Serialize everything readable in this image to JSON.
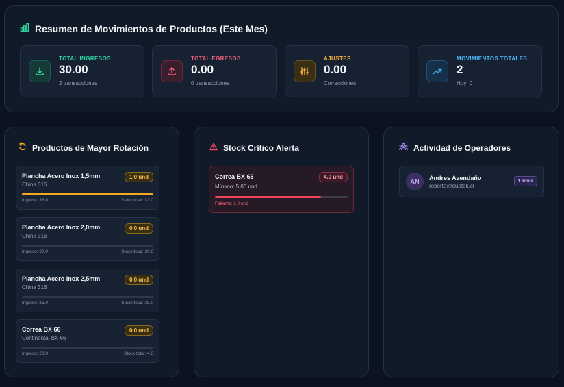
{
  "summary": {
    "title": "Resumen de Movimientos de Productos (Este Mes)",
    "stats": [
      {
        "label": "TOTAL INGRESOS",
        "value": "30.00",
        "sub": "2 transacciones",
        "icon": "download-icon",
        "color": "#2fd2a0"
      },
      {
        "label": "TOTAL EGRESOS",
        "value": "0.00",
        "sub": "0 transacciones",
        "icon": "upload-icon",
        "color": "#f0607a"
      },
      {
        "label": "AJUSTES",
        "value": "0.00",
        "sub": "Correcciones",
        "icon": "sliders-icon",
        "color": "#f3b23a"
      },
      {
        "label": "MOVIMIENTOS TOTALES",
        "value": "2",
        "sub": "Hoy: 0",
        "icon": "trending-up-icon",
        "color": "#4ab6f5"
      }
    ]
  },
  "rotation": {
    "title": "Productos de Mayor Rotación",
    "items": [
      {
        "name": "Plancha Acero Inox 1,5mm",
        "sub": "China 316",
        "badge": "1.0 und",
        "ingreso": "Ingreso: 35.0",
        "stock": "Stock total: 33.0",
        "progress": 1.0
      },
      {
        "name": "Plancha Acero Inox 2,0mm",
        "sub": "China 316",
        "badge": "0.0 und",
        "ingreso": "Ingreso: 30.0",
        "stock": "Stock total: 30.0",
        "progress": 0.0
      },
      {
        "name": "Plancha Acero Inox 2,5mm",
        "sub": "China 316",
        "badge": "0.0 und",
        "ingreso": "Ingreso: 35.0",
        "stock": "Stock total: 35.0",
        "progress": 0.0
      },
      {
        "name": "Correa BX 66",
        "sub": "Continental BX 66",
        "badge": "0.0 und",
        "ingreso": "Ingreso: 20.0",
        "stock": "Stock total: 4.0",
        "progress": 0.0
      }
    ]
  },
  "critical": {
    "title": "Stock Crítico Alerta",
    "item": {
      "name": "Correa BX 66",
      "min": "Mínimo: 5.00 und",
      "badge": "4.0 und",
      "missing": "Faltante: 1.0 und",
      "progress": 0.8
    }
  },
  "operators": {
    "title": "Actividad de Operadores",
    "items": [
      {
        "initials": "AN",
        "name": "Andres Avendaño",
        "email": "roberto@duotek.cl",
        "badge": "1 movs"
      }
    ]
  },
  "colors": {
    "accent_orange": "#f5a623",
    "alert_red": "#f0465e",
    "operator_purple": "#a78bfa",
    "ingresos_green": "#2fd2a0"
  }
}
